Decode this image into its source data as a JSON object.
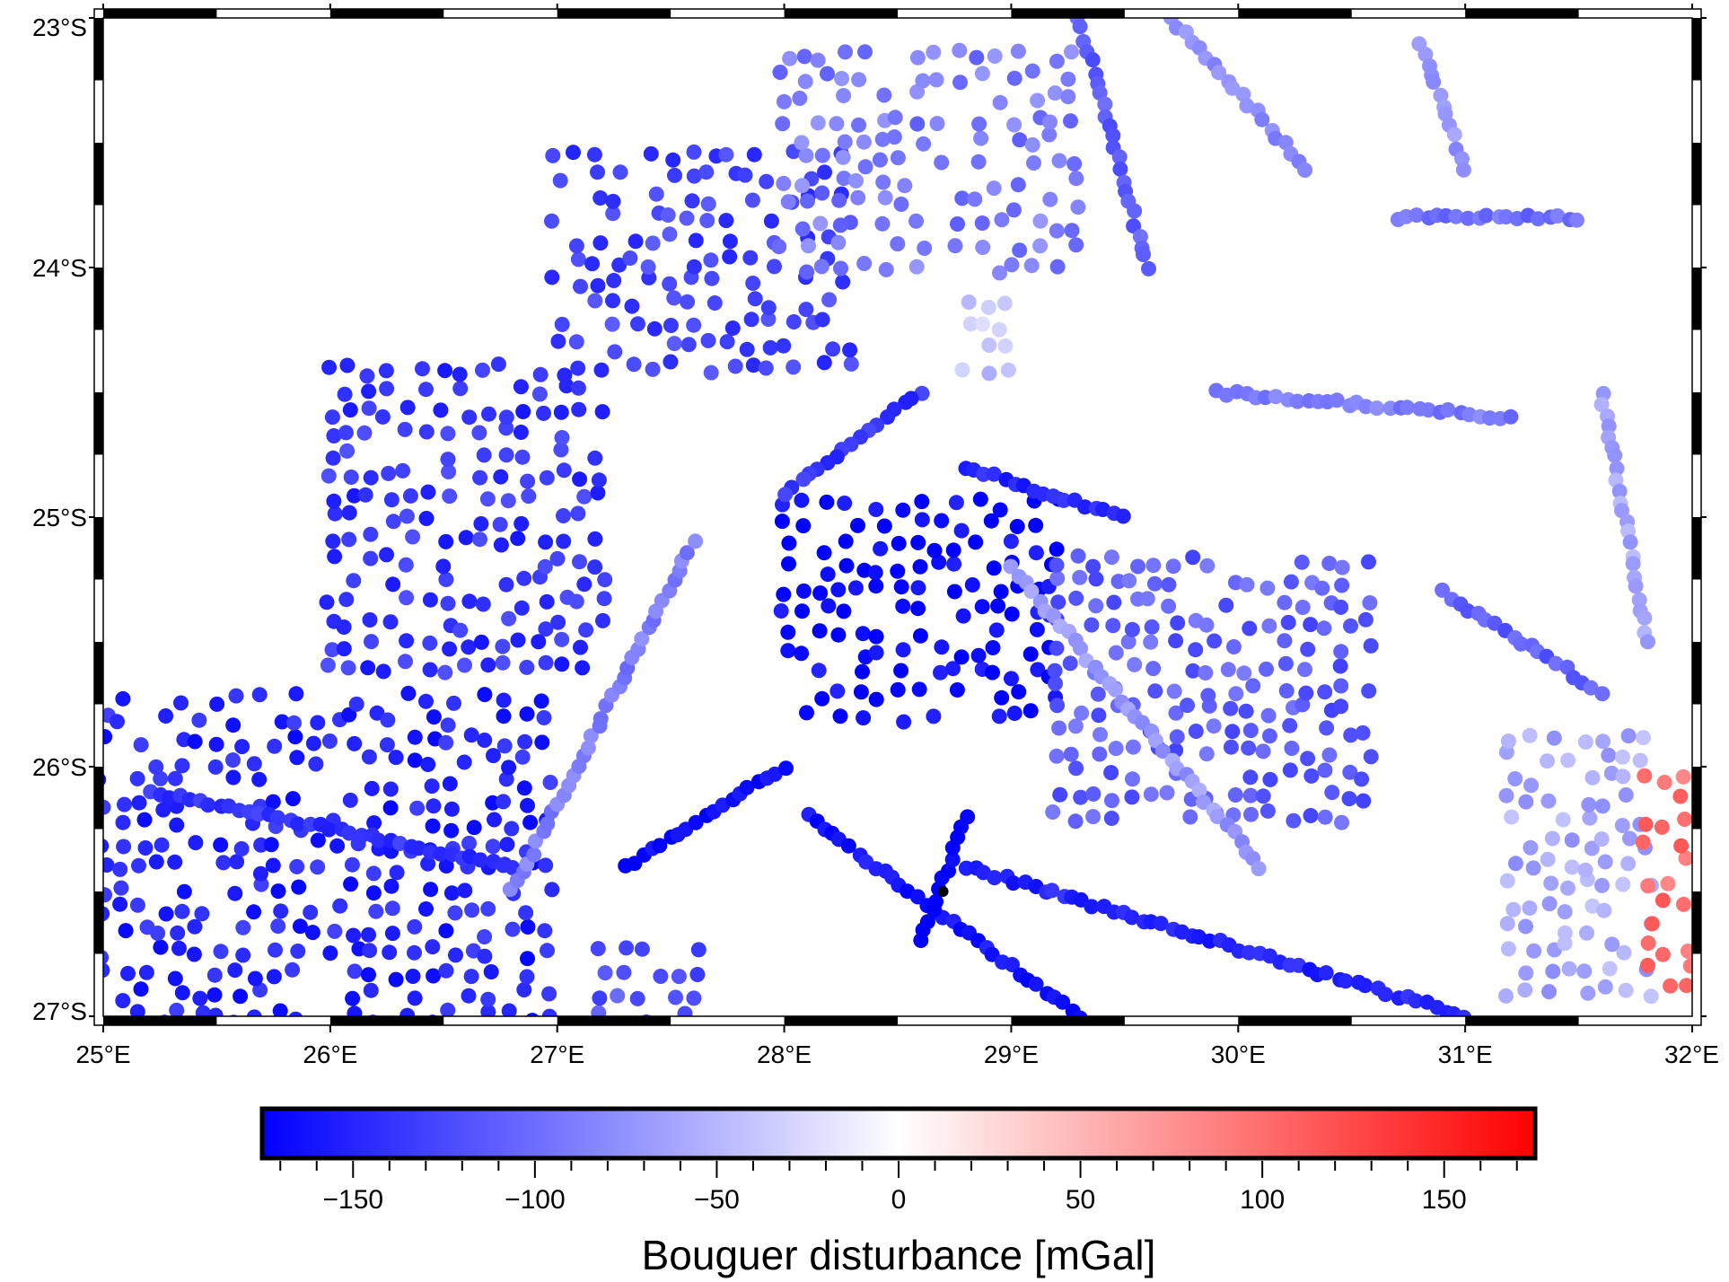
{
  "chart_data": {
    "type": "scatter",
    "projection": "lon-lat map with checkerboard (fancy) frame",
    "xlim": [
      25,
      32
    ],
    "ylim": [
      -27,
      -23
    ],
    "x_ticks": [
      25,
      26,
      27,
      28,
      29,
      30,
      31,
      32
    ],
    "x_tick_labels": [
      "25°E",
      "26°E",
      "27°E",
      "28°E",
      "29°E",
      "30°E",
      "31°E",
      "32°E"
    ],
    "y_ticks": [
      -23,
      -24,
      -25,
      -26,
      -27
    ],
    "y_tick_labels": [
      "23°S",
      "24°S",
      "25°S",
      "26°S",
      "27°S"
    ],
    "point_style": "filled circle",
    "colorbar": {
      "label": "Bouguer disturbance [mGal]",
      "range": [
        -175,
        175
      ],
      "ticks": [
        -150,
        -100,
        -50,
        0,
        50,
        100,
        150
      ],
      "tick_labels": [
        "−150",
        "−100",
        "−50",
        "0",
        "50",
        "100",
        "150"
      ],
      "minor_tick_step": 10,
      "colormap": "polar (blue-white-red)",
      "colors": {
        "low": "#0000ff",
        "mid": "#ffffff",
        "high": "#ff0000"
      }
    },
    "clusters": [
      {
        "lon": [
          26.0,
          27.2
        ],
        "lat": [
          -25.6,
          -24.4
        ],
        "value": -140
      },
      {
        "lon": [
          27.0,
          28.3
        ],
        "lat": [
          -24.4,
          -23.5
        ],
        "value": -130
      },
      {
        "lon": [
          28.0,
          29.3
        ],
        "lat": [
          -24.0,
          -23.1
        ],
        "value": -90
      },
      {
        "lon": [
          28.8,
          29.0
        ],
        "lat": [
          -24.4,
          -24.1
        ],
        "value": -40
      },
      {
        "lon": [
          28.0,
          29.2
        ],
        "lat": [
          -25.8,
          -24.9
        ],
        "value": -170
      },
      {
        "lon": [
          29.2,
          30.6
        ],
        "lat": [
          -26.2,
          -25.1
        ],
        "value": -110
      },
      {
        "lon": [
          31.2,
          31.8
        ],
        "lat": [
          -26.9,
          -25.8
        ],
        "value": -60
      },
      {
        "lon": [
          31.8,
          32.0
        ],
        "lat": [
          -26.9,
          -26.0
        ],
        "value": 100
      },
      {
        "lon": [
          25.0,
          27.0
        ],
        "lat": [
          -27.0,
          -25.7
        ],
        "value": -150
      },
      {
        "lon": [
          27.2,
          27.7
        ],
        "lat": [
          -27.0,
          -26.7
        ],
        "value": -120
      }
    ],
    "tracks": [
      {
        "from": [
          27.3,
          -26.4
        ],
        "to": [
          28.0,
          -26.0
        ],
        "value": -170
      },
      {
        "from": [
          28.1,
          -26.2
        ],
        "to": [
          29.3,
          -27.0
        ],
        "value": -160
      },
      {
        "from": [
          28.6,
          -26.7
        ],
        "to": [
          28.8,
          -26.2
        ],
        "value": -180
      },
      {
        "from": [
          28.8,
          -26.4
        ],
        "to": [
          31.0,
          -27.0
        ],
        "value": -150
      },
      {
        "from": [
          29.3,
          -23.0
        ],
        "to": [
          29.6,
          -24.0
        ],
        "value": -110
      },
      {
        "from": [
          29.7,
          -23.0
        ],
        "to": [
          30.3,
          -23.6
        ],
        "value": -80
      },
      {
        "from": [
          30.8,
          -23.1
        ],
        "to": [
          31.0,
          -23.6
        ],
        "value": -70
      },
      {
        "from": [
          30.7,
          -23.8
        ],
        "to": [
          31.5,
          -23.8
        ],
        "value": -100
      },
      {
        "from": [
          29.9,
          -24.5
        ],
        "to": [
          31.2,
          -24.6
        ],
        "value": -90
      },
      {
        "from": [
          28.6,
          -24.5
        ],
        "to": [
          28.0,
          -24.9
        ],
        "value": -140
      },
      {
        "from": [
          28.8,
          -24.8
        ],
        "to": [
          29.5,
          -25.0
        ],
        "value": -150
      },
      {
        "from": [
          25.2,
          -26.1
        ],
        "to": [
          26.8,
          -26.4
        ],
        "value": -140
      },
      {
        "from": [
          26.8,
          -26.5
        ],
        "to": [
          27.6,
          -25.1
        ],
        "value": -90
      },
      {
        "from": [
          29.0,
          -25.2
        ],
        "to": [
          30.1,
          -26.4
        ],
        "value": -70
      },
      {
        "from": [
          30.9,
          -25.3
        ],
        "to": [
          31.6,
          -25.7
        ],
        "value": -110
      },
      {
        "from": [
          31.6,
          -24.5
        ],
        "to": [
          31.8,
          -25.5
        ],
        "value": -60
      }
    ],
    "highlight_point": {
      "lon": 28.7,
      "lat": -26.5,
      "color": "#000000"
    }
  }
}
